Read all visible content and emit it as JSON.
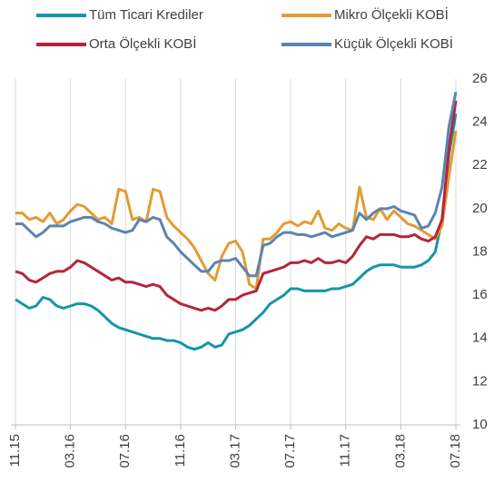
{
  "chart_data": {
    "type": "line",
    "categories": [
      "11.15",
      null,
      null,
      null,
      null,
      null,
      null,
      null,
      "03.16",
      null,
      null,
      null,
      null,
      null,
      null,
      null,
      "07.16",
      null,
      null,
      null,
      null,
      null,
      null,
      null,
      "11.16",
      null,
      null,
      null,
      null,
      null,
      null,
      null,
      "03.17",
      null,
      null,
      null,
      null,
      null,
      null,
      null,
      "07.17",
      null,
      null,
      null,
      null,
      null,
      null,
      null,
      "11.17",
      null,
      null,
      null,
      null,
      null,
      null,
      null,
      "03.18",
      null,
      null,
      null,
      null,
      null,
      null,
      null,
      "07.18"
    ],
    "series": [
      {
        "name": "Tüm Ticari Krediler",
        "color": "#1396a8",
        "values": [
          15.8,
          15.6,
          15.4,
          15.5,
          15.9,
          15.8,
          15.5,
          15.4,
          15.5,
          15.6,
          15.6,
          15.5,
          15.3,
          15.0,
          14.7,
          14.5,
          14.4,
          14.3,
          14.2,
          14.1,
          14.0,
          14.0,
          13.9,
          13.9,
          13.8,
          13.6,
          13.5,
          13.6,
          13.8,
          13.6,
          13.7,
          14.2,
          14.3,
          14.4,
          14.6,
          14.9,
          15.2,
          15.6,
          15.8,
          16.0,
          16.3,
          16.3,
          16.2,
          16.2,
          16.2,
          16.2,
          16.3,
          16.3,
          16.4,
          16.5,
          16.8,
          17.1,
          17.3,
          17.4,
          17.4,
          17.4,
          17.3,
          17.3,
          17.3,
          17.4,
          17.6,
          18.0,
          19.5,
          22.5,
          24.4
        ]
      },
      {
        "name": "Mikro Ölçekli KOBİ",
        "color": "#e39b32",
        "values": [
          19.8,
          19.8,
          19.5,
          19.6,
          19.4,
          19.8,
          19.3,
          19.5,
          19.9,
          20.2,
          20.1,
          19.8,
          19.5,
          19.6,
          19.3,
          20.9,
          20.8,
          19.5,
          19.6,
          19.4,
          20.9,
          20.8,
          19.6,
          19.2,
          18.9,
          18.6,
          18.2,
          17.6,
          17.0,
          16.7,
          17.8,
          18.4,
          18.5,
          18.0,
          16.5,
          16.3,
          18.6,
          18.6,
          18.9,
          19.3,
          19.4,
          19.2,
          19.4,
          19.3,
          19.9,
          19.1,
          19.0,
          19.3,
          19.1,
          19.0,
          21.0,
          19.6,
          19.5,
          20.0,
          19.5,
          19.9,
          19.6,
          19.3,
          19.2,
          19.0,
          18.8,
          18.6,
          19.2,
          21.5,
          23.6
        ]
      },
      {
        "name": "Orta Ölçekli KOBİ",
        "color": "#b3263b",
        "values": [
          17.1,
          17.0,
          16.7,
          16.6,
          16.8,
          17.0,
          17.1,
          17.1,
          17.3,
          17.6,
          17.5,
          17.3,
          17.1,
          16.9,
          16.7,
          16.8,
          16.6,
          16.6,
          16.5,
          16.4,
          16.5,
          16.4,
          16.0,
          15.8,
          15.6,
          15.5,
          15.4,
          15.3,
          15.4,
          15.3,
          15.5,
          15.8,
          15.8,
          16.0,
          16.1,
          16.2,
          17.0,
          17.1,
          17.2,
          17.3,
          17.5,
          17.5,
          17.6,
          17.5,
          17.7,
          17.5,
          17.5,
          17.6,
          17.5,
          17.8,
          18.3,
          18.7,
          18.6,
          18.8,
          18.8,
          18.8,
          18.7,
          18.7,
          18.8,
          18.6,
          18.5,
          18.7,
          19.5,
          22.8,
          25.0
        ]
      },
      {
        "name": "Küçük Ölçekli KOBİ",
        "color": "#5b84b1",
        "values": [
          19.3,
          19.3,
          19.0,
          18.7,
          18.9,
          19.2,
          19.2,
          19.2,
          19.4,
          19.5,
          19.6,
          19.6,
          19.4,
          19.3,
          19.1,
          19.0,
          18.9,
          19.0,
          19.5,
          19.4,
          19.6,
          19.5,
          18.7,
          18.4,
          18.0,
          17.7,
          17.4,
          17.1,
          17.1,
          17.5,
          17.6,
          17.6,
          17.7,
          17.3,
          16.9,
          16.9,
          18.3,
          18.4,
          18.7,
          18.9,
          18.9,
          18.8,
          18.8,
          18.7,
          18.8,
          18.9,
          18.7,
          18.8,
          18.9,
          19.0,
          19.8,
          19.5,
          19.8,
          20.0,
          20.0,
          20.1,
          19.9,
          19.8,
          19.7,
          19.1,
          19.2,
          19.8,
          21.0,
          23.8,
          25.4
        ]
      }
    ],
    "ylim": [
      10,
      26
    ],
    "yticks": [
      10,
      12,
      14,
      16,
      18,
      20,
      22,
      24,
      26
    ],
    "grid": "x"
  }
}
